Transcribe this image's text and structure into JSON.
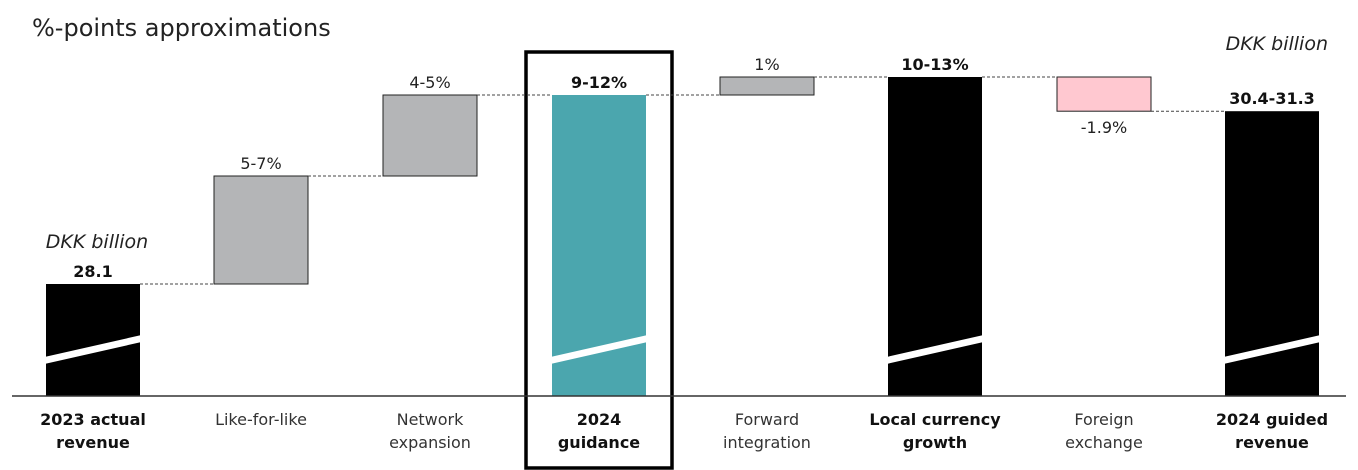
{
  "chart_data": {
    "type": "bar",
    "title": "%-points approximations",
    "unit_left": "DKK billion",
    "unit_right": "DKK billion",
    "categories": [
      {
        "lines": [
          "2023 actual",
          "revenue"
        ],
        "bold": true
      },
      {
        "lines": [
          "Like-for-like"
        ],
        "bold": false
      },
      {
        "lines": [
          "Network",
          "expansion"
        ],
        "bold": false
      },
      {
        "lines": [
          "2024",
          "guidance"
        ],
        "bold": true
      },
      {
        "lines": [
          "Forward",
          "integration"
        ],
        "bold": false
      },
      {
        "lines": [
          "Local currency",
          "growth"
        ],
        "bold": true
      },
      {
        "lines": [
          "Foreign",
          "exchange"
        ],
        "bold": false
      },
      {
        "lines": [
          "2024 guided",
          "revenue"
        ],
        "bold": true
      }
    ],
    "value_labels": [
      "28.1",
      "5-7%",
      "4-5%",
      "9-12%",
      "1%",
      "10-13%",
      "-1.9%",
      "30.4-31.3"
    ],
    "bars": [
      {
        "kind": "total",
        "base": 0,
        "top": 0,
        "color": "#000000",
        "break": true
      },
      {
        "kind": "step",
        "base": 0,
        "top": 6,
        "color": "#b4b5b7"
      },
      {
        "kind": "step",
        "base": 6,
        "top": 10.5,
        "color": "#b4b5b7"
      },
      {
        "kind": "total",
        "base": 0,
        "top": 10.5,
        "color": "#4ba6ae",
        "break": true,
        "highlight": true
      },
      {
        "kind": "step",
        "base": 10.5,
        "top": 11.5,
        "color": "#b4b5b7"
      },
      {
        "kind": "total",
        "base": 0,
        "top": 11.5,
        "color": "#000000",
        "break": true
      },
      {
        "kind": "step",
        "base": 11.5,
        "top": 9.6,
        "color": "#ffc8d0"
      },
      {
        "kind": "total",
        "base": 0,
        "top": 9.6,
        "color": "#000000",
        "break": true
      }
    ],
    "axis_line": true,
    "grid": false,
    "connector_lines": "dashed"
  }
}
